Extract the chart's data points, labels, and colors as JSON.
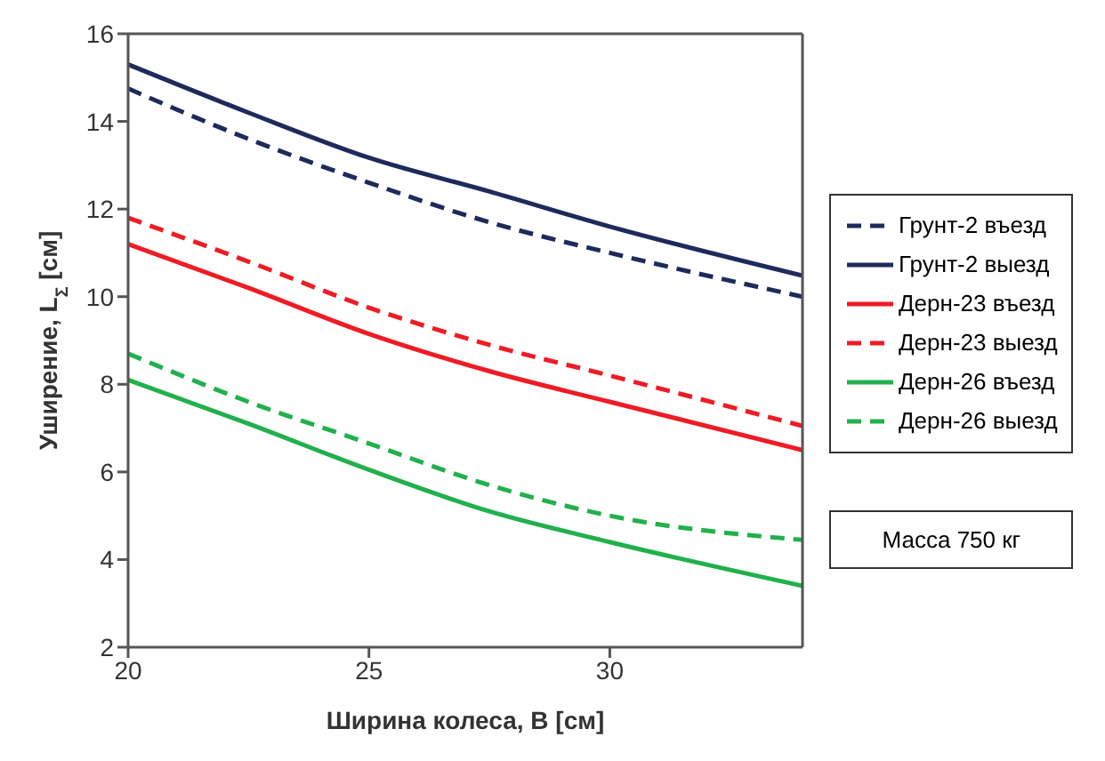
{
  "chart_data": {
    "type": "line",
    "xlabel": "Ширина колеса, B [см]",
    "ylabel": "Уширение, L$_{Σ}$ [см]",
    "x": [
      20,
      22.5,
      25,
      27.5,
      30,
      34
    ],
    "xlim": [
      20,
      34
    ],
    "xticks": [
      20,
      25,
      30
    ],
    "ylim": [
      2,
      16
    ],
    "yticks": [
      2,
      4,
      6,
      8,
      10,
      12,
      14,
      16
    ],
    "grid": false,
    "legend": "right",
    "marker": "none",
    "annotations": [
      "Масса 750 кг"
    ],
    "series": [
      {
        "name": "Грунт-2 въезд",
        "color": "#1f2a5c",
        "line_style": "dashed",
        "values": [
          14.75,
          13.6,
          12.6,
          11.7,
          11.0,
          10.0
        ]
      },
      {
        "name": "Грунт-2 выезд",
        "color": "#1f2a5c",
        "line_style": "solid",
        "values": [
          15.3,
          14.2,
          13.17,
          12.4,
          11.6,
          10.48
        ]
      },
      {
        "name": "Дерн-23 въезд",
        "color": "#ee1c25",
        "line_style": "solid",
        "values": [
          11.2,
          10.2,
          9.15,
          8.3,
          7.6,
          6.5
        ]
      },
      {
        "name": "Дерн-23 выезд",
        "color": "#ee1c25",
        "line_style": "dashed",
        "values": [
          11.8,
          10.8,
          9.75,
          8.9,
          8.2,
          7.05
        ]
      },
      {
        "name": "Дерн-26 въезд",
        "color": "#22b04c",
        "line_style": "solid",
        "values": [
          8.1,
          7.1,
          6.05,
          5.1,
          4.4,
          3.4
        ]
      },
      {
        "name": "Дерн-26 выезд",
        "color": "#22b04c",
        "line_style": "dashed",
        "values": [
          8.7,
          7.6,
          6.65,
          5.7,
          5.0,
          4.45
        ]
      }
    ]
  }
}
